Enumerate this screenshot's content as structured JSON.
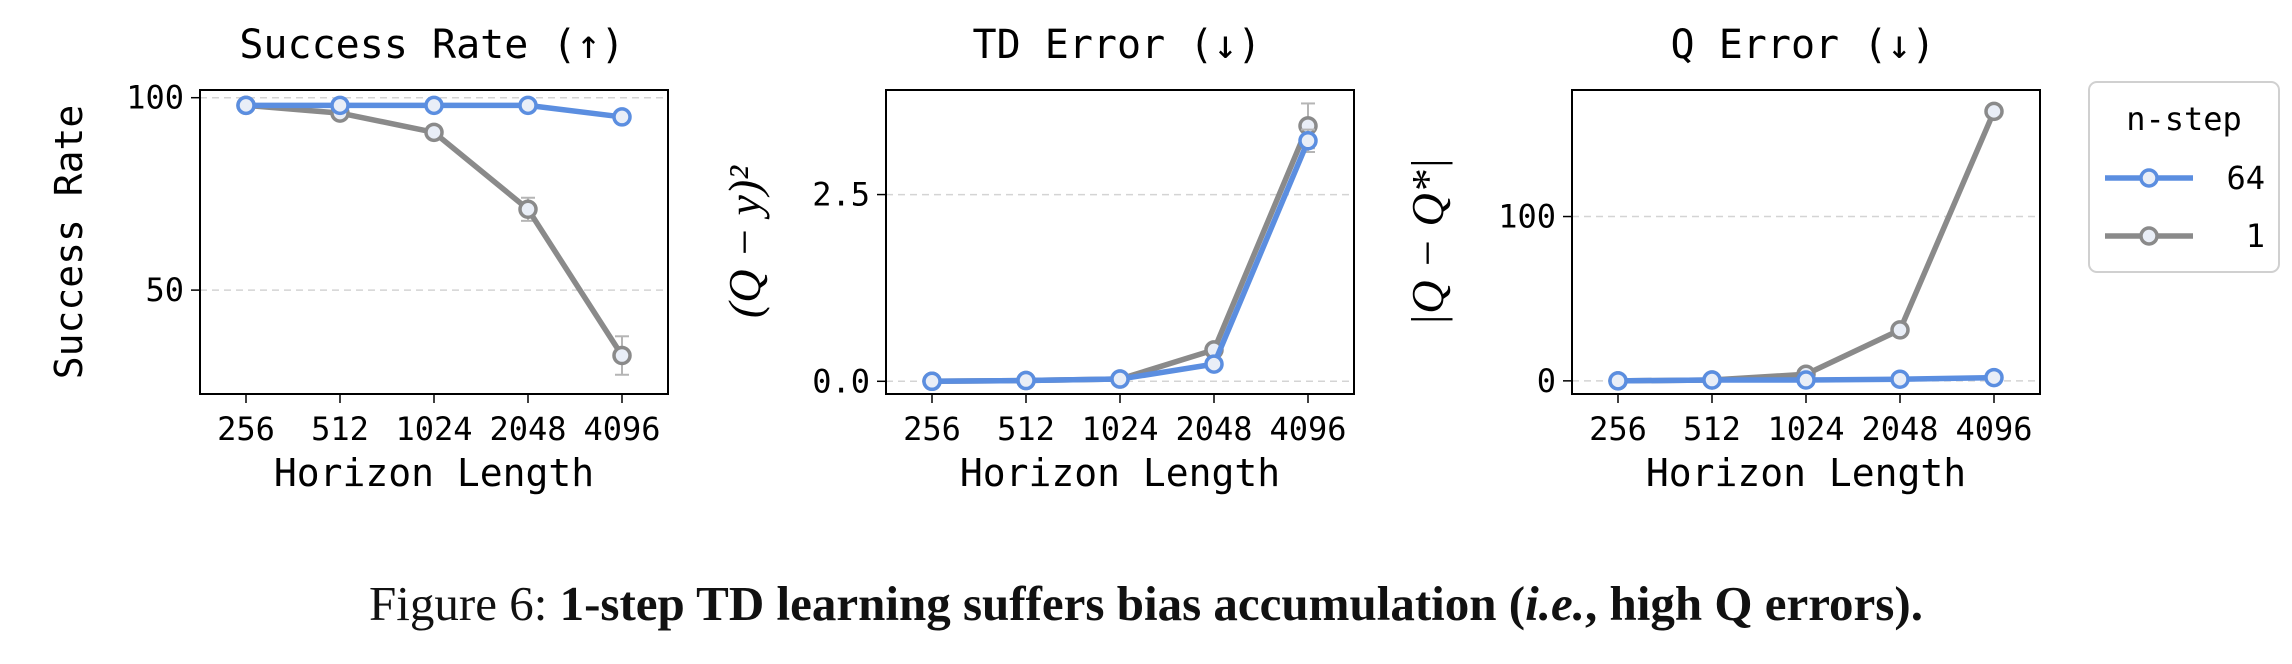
{
  "chart_data": [
    {
      "type": "line",
      "title": "Success Rate (↑)",
      "xlabel": "Horizon Length",
      "ylabel": "Success Rate",
      "categories": [
        "256",
        "512",
        "1024",
        "2048",
        "4096"
      ],
      "yticks": [
        {
          "value": 50,
          "label": "50"
        },
        {
          "value": 100,
          "label": "100"
        }
      ],
      "ylim": [
        23,
        102
      ],
      "grid": "horizontal dashed",
      "series": [
        {
          "name": "1",
          "color": "#8a8a8a",
          "values": [
            98,
            96,
            91,
            71,
            33
          ],
          "errors": [
            0,
            0,
            0,
            3,
            5
          ]
        },
        {
          "name": "64",
          "color": "#5b8ee0",
          "values": [
            98,
            98,
            98,
            98,
            95
          ],
          "errors": [
            0,
            0,
            0,
            0,
            0
          ]
        }
      ]
    },
    {
      "type": "line",
      "title": "TD Error (↓)",
      "xlabel": "Horizon Length",
      "ylabel": "(Q − y)²",
      "categories": [
        "256",
        "512",
        "1024",
        "2048",
        "4096"
      ],
      "yticks": [
        {
          "value": 0,
          "label": "0.0"
        },
        {
          "value": 2.5,
          "label": "2.5"
        }
      ],
      "ylim": [
        -0.17,
        3.9
      ],
      "grid": "horizontal dashed",
      "series": [
        {
          "name": "1",
          "color": "#8a8a8a",
          "values": [
            0.0,
            0.01,
            0.03,
            0.42,
            3.42
          ],
          "errors": [
            0,
            0,
            0,
            0,
            0.3
          ]
        },
        {
          "name": "64",
          "color": "#5b8ee0",
          "values": [
            0.0,
            0.01,
            0.03,
            0.23,
            3.22
          ],
          "errors": [
            0,
            0,
            0,
            0,
            0.15
          ]
        }
      ]
    },
    {
      "type": "line",
      "title": "Q Error (↓)",
      "xlabel": "Horizon Length",
      "ylabel": "|Q − Q*|",
      "categories": [
        "256",
        "512",
        "1024",
        "2048",
        "4096"
      ],
      "yticks": [
        {
          "value": 0,
          "label": "0"
        },
        {
          "value": 100,
          "label": "100"
        }
      ],
      "ylim": [
        -8,
        177
      ],
      "grid": "horizontal dashed",
      "series": [
        {
          "name": "1",
          "color": "#8a8a8a",
          "values": [
            0,
            0.5,
            4,
            31,
            164
          ],
          "errors": [
            0,
            0,
            0,
            0,
            0
          ]
        },
        {
          "name": "64",
          "color": "#5b8ee0",
          "values": [
            0,
            0.5,
            0.5,
            1,
            2
          ],
          "errors": [
            0,
            0,
            0,
            0,
            0
          ]
        }
      ]
    }
  ],
  "legend": {
    "title": "n-step",
    "placement": "right",
    "items": [
      {
        "label": "64",
        "color": "#5b8ee0"
      },
      {
        "label": "1",
        "color": "#8a8a8a"
      }
    ]
  },
  "caption": {
    "prefix": "Figure 6: ",
    "bold1": "1-step TD learning suffers bias accumulation (",
    "italic": "i.e.",
    "bold2": ", high Q errors)."
  }
}
